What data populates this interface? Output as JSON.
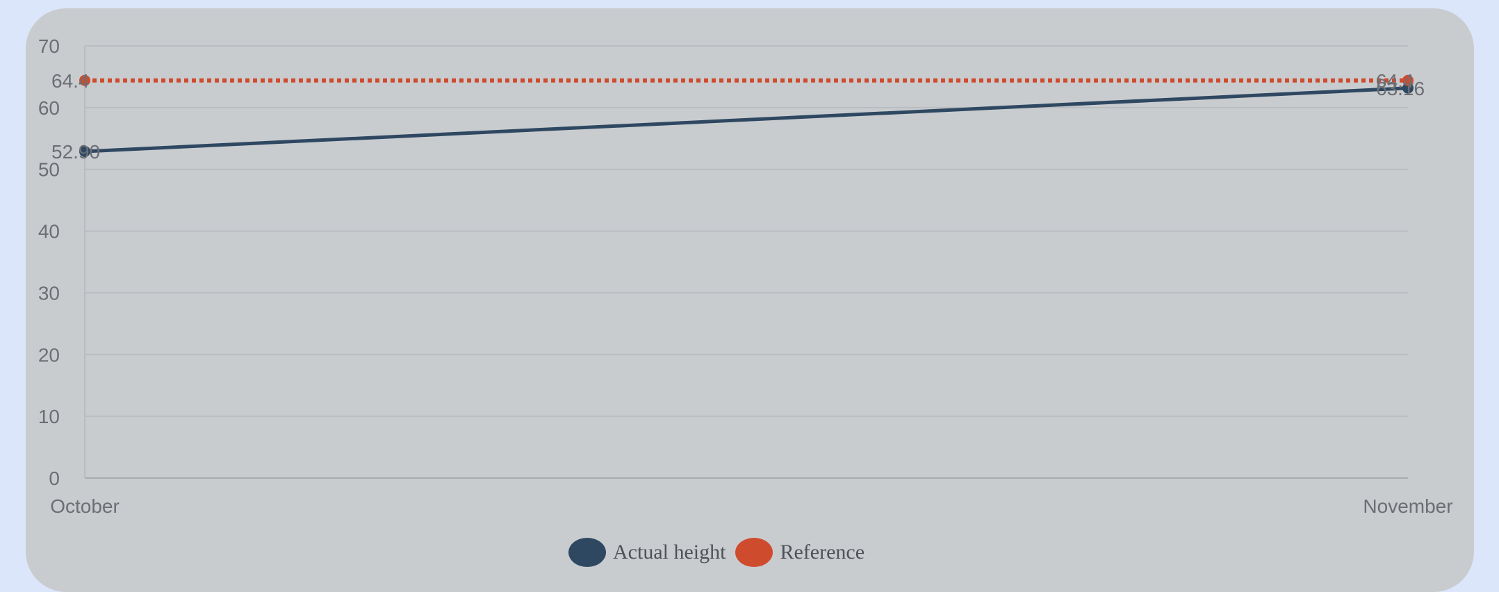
{
  "chart_data": {
    "type": "line",
    "categories": [
      "October",
      "November"
    ],
    "ylim": [
      0,
      70
    ],
    "yticks": [
      0,
      10,
      20,
      30,
      40,
      50,
      60,
      70
    ],
    "grid": true,
    "legend_position": "bottom",
    "series": [
      {
        "name": "Actual height",
        "values": [
          52.9,
          63.16
        ],
        "color": "#2f4862",
        "style": "solid",
        "labels": [
          "52.90",
          "63.16"
        ]
      },
      {
        "name": "Reference",
        "values": [
          64.4,
          64.4
        ],
        "color": "#cf4b2e",
        "style": "dotted",
        "labels": [
          "64.4",
          "64.4"
        ]
      }
    ]
  },
  "colors": {
    "page_background": "#dce6fb",
    "card_background": "#c9cccf",
    "grid": "#b9bcc0",
    "axis_text": "#6b6f74"
  }
}
